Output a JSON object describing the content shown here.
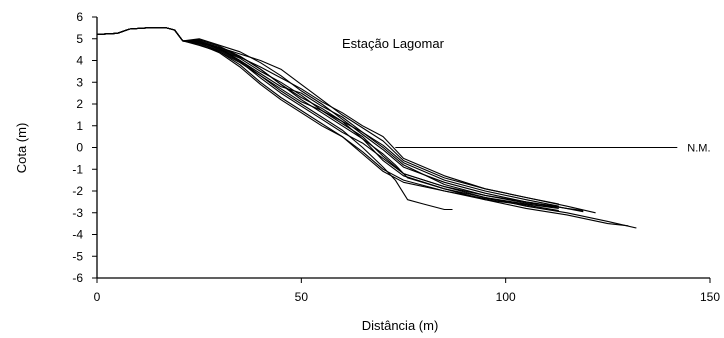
{
  "chart_data": {
    "type": "line",
    "title": "Estação Lagomar",
    "xlabel": "Distância (m)",
    "ylabel": "Cota (m)",
    "xlim": [
      0,
      150
    ],
    "ylim": [
      -6,
      6
    ],
    "x_ticks": [
      0,
      50,
      100,
      150
    ],
    "y_ticks": [
      6,
      5,
      4,
      3,
      2,
      1,
      0,
      -1,
      -2,
      -3,
      -4,
      -5,
      -6
    ],
    "grid": false,
    "legend": "none",
    "water_level": {
      "label": "N.M.",
      "y": 0,
      "x_range": [
        73,
        142
      ]
    },
    "series": [
      {
        "values": [
          [
            0,
            5.2
          ],
          [
            5,
            5.25
          ],
          [
            8,
            5.45
          ],
          [
            12,
            5.5
          ],
          [
            17,
            5.5
          ],
          [
            19,
            5.4
          ],
          [
            21,
            4.9
          ],
          [
            25,
            4.8
          ],
          [
            30,
            4.6
          ],
          [
            35,
            4.2
          ],
          [
            40,
            3.6
          ],
          [
            45,
            2.9
          ],
          [
            50,
            2.2
          ],
          [
            55,
            1.6
          ],
          [
            60,
            1.0
          ],
          [
            65,
            0.4
          ],
          [
            70,
            -0.3
          ],
          [
            73,
            -0.8
          ],
          [
            76,
            -1.4
          ],
          [
            85,
            -1.9
          ],
          [
            95,
            -2.3
          ],
          [
            105,
            -2.6
          ],
          [
            113,
            -2.8
          ]
        ]
      },
      {
        "values": [
          [
            0,
            5.2
          ],
          [
            5,
            5.25
          ],
          [
            8,
            5.45
          ],
          [
            12,
            5.5
          ],
          [
            17,
            5.5
          ],
          [
            19,
            5.4
          ],
          [
            21,
            4.9
          ],
          [
            25,
            4.85
          ],
          [
            30,
            4.55
          ],
          [
            35,
            4.0
          ],
          [
            40,
            3.3
          ],
          [
            45,
            2.6
          ],
          [
            50,
            2.0
          ],
          [
            55,
            1.4
          ],
          [
            60,
            0.8
          ],
          [
            65,
            0.0
          ],
          [
            70,
            -0.9
          ],
          [
            73,
            -1.5
          ],
          [
            76,
            -2.4
          ],
          [
            80,
            -2.6
          ],
          [
            85,
            -2.85
          ],
          [
            87,
            -2.85
          ]
        ]
      },
      {
        "values": [
          [
            0,
            5.2
          ],
          [
            5,
            5.25
          ],
          [
            8,
            5.45
          ],
          [
            12,
            5.5
          ],
          [
            17,
            5.5
          ],
          [
            19,
            5.4
          ],
          [
            21,
            4.9
          ],
          [
            25,
            4.9
          ],
          [
            30,
            4.5
          ],
          [
            35,
            4.1
          ],
          [
            40,
            3.5
          ],
          [
            45,
            3.0
          ],
          [
            50,
            2.4
          ],
          [
            55,
            1.7
          ],
          [
            60,
            1.1
          ],
          [
            65,
            0.5
          ],
          [
            70,
            -0.4
          ],
          [
            75,
            -1.2
          ],
          [
            85,
            -1.8
          ],
          [
            95,
            -2.3
          ],
          [
            105,
            -2.7
          ],
          [
            115,
            -3.0
          ],
          [
            125,
            -3.4
          ],
          [
            132,
            -3.7
          ]
        ]
      },
      {
        "values": [
          [
            0,
            5.2
          ],
          [
            5,
            5.25
          ],
          [
            8,
            5.45
          ],
          [
            12,
            5.5
          ],
          [
            17,
            5.5
          ],
          [
            19,
            5.4
          ],
          [
            21,
            4.9
          ],
          [
            25,
            5.0
          ],
          [
            30,
            4.7
          ],
          [
            35,
            4.4
          ],
          [
            40,
            3.9
          ],
          [
            45,
            3.3
          ],
          [
            50,
            2.6
          ],
          [
            55,
            2.0
          ],
          [
            60,
            1.3
          ],
          [
            65,
            0.6
          ],
          [
            70,
            -0.1
          ],
          [
            75,
            -0.9
          ],
          [
            85,
            -1.6
          ],
          [
            95,
            -2.1
          ],
          [
            105,
            -2.5
          ],
          [
            112,
            -2.7
          ],
          [
            119,
            -2.95
          ]
        ]
      },
      {
        "values": [
          [
            0,
            5.2
          ],
          [
            5,
            5.25
          ],
          [
            8,
            5.45
          ],
          [
            12,
            5.5
          ],
          [
            17,
            5.5
          ],
          [
            19,
            5.4
          ],
          [
            21,
            4.9
          ],
          [
            25,
            4.7
          ],
          [
            30,
            4.4
          ],
          [
            35,
            3.8
          ],
          [
            40,
            3.0
          ],
          [
            45,
            2.3
          ],
          [
            50,
            1.7
          ],
          [
            55,
            1.1
          ],
          [
            60,
            0.5
          ],
          [
            65,
            -0.2
          ],
          [
            70,
            -1.0
          ],
          [
            75,
            -1.5
          ],
          [
            85,
            -2.0
          ],
          [
            95,
            -2.4
          ],
          [
            105,
            -2.65
          ],
          [
            113,
            -2.9
          ]
        ]
      },
      {
        "values": [
          [
            0,
            5.2
          ],
          [
            5,
            5.25
          ],
          [
            8,
            5.45
          ],
          [
            12,
            5.5
          ],
          [
            17,
            5.5
          ],
          [
            19,
            5.4
          ],
          [
            21,
            4.9
          ],
          [
            25,
            4.9
          ],
          [
            30,
            4.6
          ],
          [
            35,
            4.3
          ],
          [
            40,
            4.0
          ],
          [
            45,
            3.6
          ],
          [
            50,
            2.9
          ],
          [
            55,
            2.2
          ],
          [
            60,
            1.5
          ],
          [
            65,
            0.9
          ],
          [
            70,
            0.3
          ],
          [
            75,
            -0.6
          ],
          [
            85,
            -1.4
          ],
          [
            95,
            -1.9
          ],
          [
            105,
            -2.3
          ],
          [
            115,
            -2.7
          ],
          [
            122,
            -3.0
          ]
        ]
      },
      {
        "values": [
          [
            0,
            5.2
          ],
          [
            5,
            5.25
          ],
          [
            8,
            5.45
          ],
          [
            12,
            5.5
          ],
          [
            17,
            5.5
          ],
          [
            19,
            5.4
          ],
          [
            21,
            4.9
          ],
          [
            25,
            4.8
          ],
          [
            30,
            4.4
          ],
          [
            35,
            3.9
          ],
          [
            40,
            3.3
          ],
          [
            45,
            2.7
          ],
          [
            50,
            2.1
          ],
          [
            55,
            1.7
          ],
          [
            60,
            1.2
          ],
          [
            65,
            0.7
          ],
          [
            70,
            0.1
          ],
          [
            75,
            -0.7
          ],
          [
            85,
            -1.5
          ],
          [
            95,
            -2.0
          ],
          [
            105,
            -2.4
          ],
          [
            113,
            -2.7
          ]
        ]
      },
      {
        "values": [
          [
            0,
            5.2
          ],
          [
            5,
            5.25
          ],
          [
            8,
            5.45
          ],
          [
            12,
            5.5
          ],
          [
            17,
            5.5
          ],
          [
            19,
            5.4
          ],
          [
            21,
            4.9
          ],
          [
            25,
            4.95
          ],
          [
            30,
            4.65
          ],
          [
            35,
            4.2
          ],
          [
            40,
            3.6
          ],
          [
            45,
            2.9
          ],
          [
            50,
            2.3
          ],
          [
            55,
            1.8
          ],
          [
            60,
            1.2
          ],
          [
            65,
            0.4
          ],
          [
            70,
            -0.6
          ],
          [
            75,
            -1.3
          ],
          [
            85,
            -1.9
          ],
          [
            95,
            -2.4
          ],
          [
            105,
            -2.8
          ],
          [
            115,
            -3.1
          ],
          [
            125,
            -3.5
          ],
          [
            130,
            -3.6
          ]
        ]
      },
      {
        "values": [
          [
            0,
            5.2
          ],
          [
            5,
            5.25
          ],
          [
            8,
            5.45
          ],
          [
            12,
            5.5
          ],
          [
            17,
            5.5
          ],
          [
            19,
            5.4
          ],
          [
            21,
            4.9
          ],
          [
            25,
            4.75
          ],
          [
            30,
            4.35
          ],
          [
            35,
            3.7
          ],
          [
            40,
            2.9
          ],
          [
            45,
            2.2
          ],
          [
            50,
            1.6
          ],
          [
            55,
            1.0
          ],
          [
            60,
            0.5
          ],
          [
            65,
            -0.3
          ],
          [
            70,
            -1.1
          ],
          [
            75,
            -1.6
          ],
          [
            85,
            -2.0
          ],
          [
            95,
            -2.35
          ],
          [
            105,
            -2.6
          ],
          [
            113,
            -2.75
          ]
        ]
      },
      {
        "values": [
          [
            0,
            5.2
          ],
          [
            5,
            5.25
          ],
          [
            8,
            5.45
          ],
          [
            12,
            5.5
          ],
          [
            17,
            5.5
          ],
          [
            19,
            5.4
          ],
          [
            21,
            4.9
          ],
          [
            25,
            4.85
          ],
          [
            30,
            4.5
          ],
          [
            35,
            4.0
          ],
          [
            40,
            3.4
          ],
          [
            45,
            2.8
          ],
          [
            50,
            2.5
          ],
          [
            55,
            1.9
          ],
          [
            60,
            1.4
          ],
          [
            65,
            0.7
          ],
          [
            70,
            0.0
          ],
          [
            75,
            -0.8
          ],
          [
            85,
            -1.7
          ],
          [
            95,
            -2.2
          ],
          [
            105,
            -2.5
          ],
          [
            115,
            -2.8
          ],
          [
            119,
            -2.9
          ]
        ]
      },
      {
        "values": [
          [
            0,
            5.2
          ],
          [
            5,
            5.25
          ],
          [
            8,
            5.45
          ],
          [
            12,
            5.5
          ],
          [
            17,
            5.5
          ],
          [
            19,
            5.4
          ],
          [
            21,
            4.9
          ],
          [
            25,
            4.8
          ],
          [
            30,
            4.45
          ],
          [
            35,
            3.95
          ],
          [
            40,
            3.2
          ],
          [
            45,
            2.5
          ],
          [
            50,
            1.9
          ],
          [
            55,
            1.3
          ],
          [
            60,
            0.7
          ],
          [
            65,
            0.2
          ],
          [
            70,
            -0.5
          ],
          [
            75,
            -1.2
          ],
          [
            85,
            -1.8
          ],
          [
            95,
            -2.2
          ],
          [
            105,
            -2.55
          ],
          [
            113,
            -2.7
          ]
        ]
      },
      {
        "values": [
          [
            0,
            5.2
          ],
          [
            5,
            5.25
          ],
          [
            8,
            5.45
          ],
          [
            12,
            5.5
          ],
          [
            17,
            5.5
          ],
          [
            19,
            5.4
          ],
          [
            21,
            4.9
          ],
          [
            25,
            4.9
          ],
          [
            30,
            4.55
          ],
          [
            35,
            4.15
          ],
          [
            40,
            3.7
          ],
          [
            45,
            3.2
          ],
          [
            50,
            2.7
          ],
          [
            55,
            2.1
          ],
          [
            60,
            1.6
          ],
          [
            65,
            1.0
          ],
          [
            70,
            0.5
          ],
          [
            75,
            -0.5
          ],
          [
            85,
            -1.3
          ],
          [
            95,
            -1.9
          ],
          [
            105,
            -2.3
          ],
          [
            113,
            -2.6
          ]
        ]
      }
    ],
    "colors": {
      "line": "#000000",
      "axis": "#000000",
      "background": "#ffffff"
    }
  }
}
